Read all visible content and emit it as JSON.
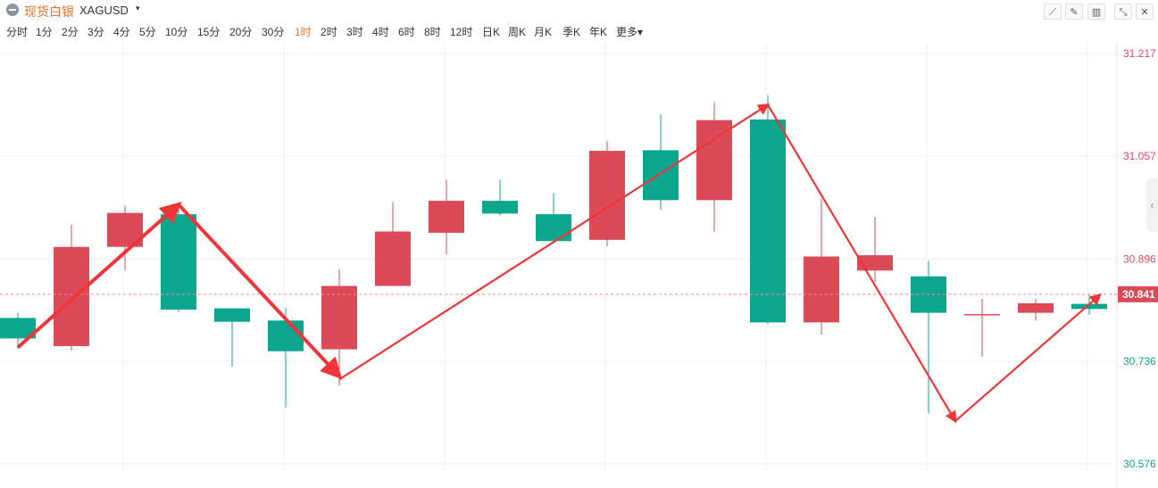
{
  "header": {
    "title_zh": "现货白银",
    "symbol": "XAGUSD",
    "caret": "▾"
  },
  "toolbar": [
    {
      "name": "draw-line-tool-icon",
      "glyph": "⟋"
    },
    {
      "name": "pencil-tool-icon",
      "glyph": "✎"
    },
    {
      "name": "candle-type-icon",
      "glyph": "▥"
    },
    {
      "name": "shrink-icon",
      "glyph": "⤡"
    },
    {
      "name": "close-icon",
      "glyph": "✕"
    }
  ],
  "periods": [
    {
      "label": "分时",
      "active": false
    },
    {
      "label": "1分",
      "active": false
    },
    {
      "label": "2分",
      "active": false
    },
    {
      "label": "3分",
      "active": false
    },
    {
      "label": "4分",
      "active": false
    },
    {
      "label": "5分",
      "active": false
    },
    {
      "label": "10分",
      "active": false
    },
    {
      "label": "15分",
      "active": false
    },
    {
      "label": "20分",
      "active": false
    },
    {
      "label": "30分",
      "active": false
    },
    {
      "label": "1时",
      "active": true
    },
    {
      "label": "2时",
      "active": false
    },
    {
      "label": "3时",
      "active": false
    },
    {
      "label": "4时",
      "active": false
    },
    {
      "label": "6时",
      "active": false
    },
    {
      "label": "8时",
      "active": false
    },
    {
      "label": "12时",
      "active": false
    },
    {
      "label": "日K",
      "active": false
    },
    {
      "label": "周K",
      "active": false
    },
    {
      "label": "月K",
      "active": false
    },
    {
      "label": "季K",
      "active": false
    },
    {
      "label": "年K",
      "active": false
    },
    {
      "label": "更多▾",
      "active": false
    }
  ],
  "side_handle": "‹",
  "colors": {
    "up": "#db4a57",
    "down": "#0aa78e",
    "arrow": "#f0353a",
    "price_line": "#f08a94",
    "grid": "#f0f0f0",
    "axis_text_up": "#db4a57",
    "axis_text_down": "#0aa78e",
    "last_price_bg": "#db4a57"
  },
  "chart_data": {
    "type": "candlestick",
    "ylim": [
      30.576,
      31.217
    ],
    "y_ticks": [
      {
        "value": 31.217,
        "label": "31.217",
        "side": "up"
      },
      {
        "value": 31.057,
        "label": "31.057",
        "side": "up"
      },
      {
        "value": 30.896,
        "label": "30.896",
        "side": "up"
      },
      {
        "value": 30.736,
        "label": "30.736",
        "side": "down"
      },
      {
        "value": 30.576,
        "label": "30.576",
        "side": "down"
      }
    ],
    "last_price": {
      "value": 30.841,
      "label": "30.841"
    },
    "candles": [
      {
        "open": 30.804,
        "close": 30.772,
        "high": 30.812,
        "low": 30.756
      },
      {
        "open": 30.76,
        "close": 30.915,
        "high": 30.95,
        "low": 30.753
      },
      {
        "open": 30.915,
        "close": 30.968,
        "high": 30.98,
        "low": 30.878
      },
      {
        "open": 30.966,
        "close": 30.817,
        "high": 30.983,
        "low": 30.813
      },
      {
        "open": 30.819,
        "close": 30.798,
        "high": 30.819,
        "low": 30.728
      },
      {
        "open": 30.8,
        "close": 30.752,
        "high": 30.82,
        "low": 30.664
      },
      {
        "open": 30.755,
        "close": 30.854,
        "high": 30.88,
        "low": 30.698
      },
      {
        "open": 30.854,
        "close": 30.939,
        "high": 30.985,
        "low": 30.854
      },
      {
        "open": 30.937,
        "close": 30.987,
        "high": 31.02,
        "low": 30.903
      },
      {
        "open": 30.987,
        "close": 30.967,
        "high": 31.02,
        "low": 30.964
      },
      {
        "open": 30.966,
        "close": 30.924,
        "high": 30.999,
        "low": 30.924
      },
      {
        "open": 30.926,
        "close": 31.065,
        "high": 31.081,
        "low": 30.916
      },
      {
        "open": 31.066,
        "close": 30.988,
        "high": 31.122,
        "low": 30.973
      },
      {
        "open": 30.988,
        "close": 31.113,
        "high": 31.141,
        "low": 30.939
      },
      {
        "open": 31.114,
        "close": 30.797,
        "high": 31.152,
        "low": 30.794
      },
      {
        "open": 30.797,
        "close": 30.9,
        "high": 30.99,
        "low": 30.778
      },
      {
        "open": 30.878,
        "close": 30.902,
        "high": 30.962,
        "low": 30.86
      },
      {
        "open": 30.869,
        "close": 30.812,
        "high": 30.893,
        "low": 30.655
      },
      {
        "open": 30.81,
        "close": 30.81,
        "high": 30.834,
        "low": 30.744
      },
      {
        "open": 30.812,
        "close": 30.827,
        "high": 30.834,
        "low": 30.8
      },
      {
        "open": 30.826,
        "close": 30.818,
        "high": 30.84,
        "low": 30.809
      }
    ],
    "arrows": [
      {
        "from": [
          0,
          30.758
        ],
        "to": [
          3,
          30.981
        ]
      },
      {
        "from": [
          3,
          30.981
        ],
        "to": [
          6,
          30.713
        ]
      },
      {
        "from": [
          6,
          30.708
        ],
        "to": [
          14,
          31.137
        ]
      },
      {
        "from": [
          14,
          31.137
        ],
        "to": [
          17.5,
          30.643
        ]
      },
      {
        "from": [
          17.5,
          30.643
        ],
        "to": [
          20.2,
          30.84
        ]
      }
    ]
  }
}
